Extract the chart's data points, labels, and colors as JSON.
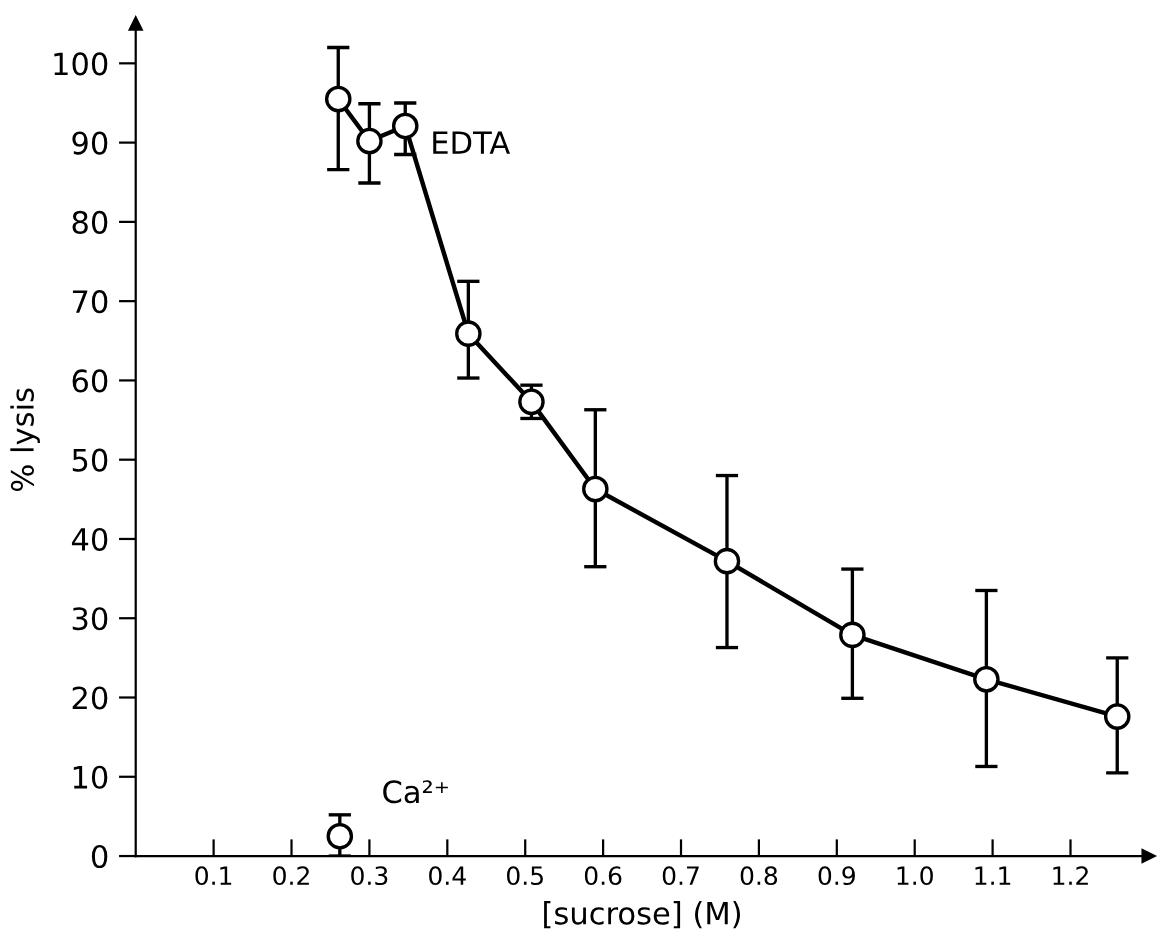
{
  "chart_data": {
    "type": "line",
    "xlabel": "[sucrose] (M)",
    "ylabel": "% lysis",
    "xlim": [
      0,
      1.3
    ],
    "ylim": [
      0,
      105
    ],
    "xticks": [
      0.1,
      0.2,
      0.3,
      0.4,
      0.5,
      0.6,
      0.7,
      0.8,
      0.9,
      {
        "value": 1.0,
        "label": "1.0"
      },
      1.1,
      1.2
    ],
    "yticks": [
      0,
      10,
      20,
      30,
      40,
      50,
      60,
      70,
      80,
      90,
      100
    ],
    "marker": "circle",
    "grid": false,
    "legend": false,
    "series": [
      {
        "name": "EDTA",
        "color": "#000000",
        "x": [
          0.26,
          0.3,
          0.346,
          0.427,
          0.508,
          0.59,
          0.759,
          0.92,
          1.092,
          1.26
        ],
        "values": [
          95.5,
          90.2,
          92.1,
          65.9,
          57.3,
          46.3,
          37.2,
          27.9,
          22.3,
          17.6
        ],
        "errors": [
          [
            86.6,
            102
          ],
          [
            84.9,
            94.9
          ],
          [
            88.5,
            95
          ],
          [
            60.3,
            72.5
          ],
          [
            55.2,
            59.4
          ],
          [
            36.5,
            56.3
          ],
          [
            26.3,
            48.0
          ],
          [
            19.9,
            36.2
          ],
          [
            11.3,
            33.5
          ],
          [
            10.5,
            25
          ]
        ]
      },
      {
        "name": "Ca²⁺",
        "color": "#000000",
        "type": "scatter",
        "x": [
          0.262
        ],
        "values": [
          2.5
        ],
        "errors": [
          [
            0,
            5.2
          ]
        ]
      }
    ]
  }
}
